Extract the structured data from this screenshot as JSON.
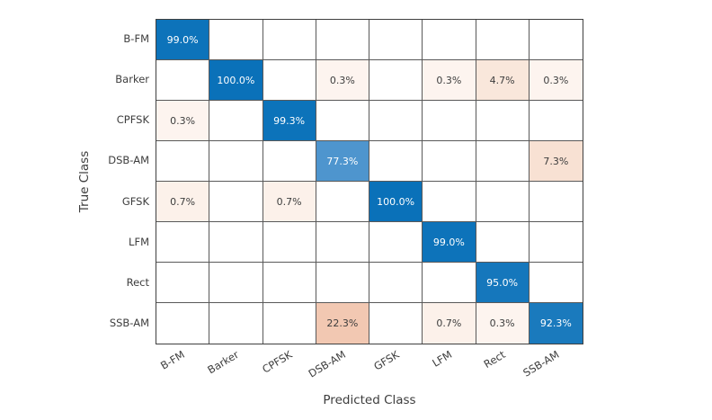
{
  "chart_data": {
    "type": "heatmap",
    "subtype": "confusion-matrix",
    "title": "",
    "xlabel": "Predicted Class",
    "ylabel": "True Class",
    "classes": [
      "B-FM",
      "Barker",
      "CPFSK",
      "DSB-AM",
      "GFSK",
      "LFM",
      "Rect",
      "SSB-AM"
    ],
    "values_unit": "percent",
    "value_suffix": "%",
    "matrix": [
      [
        99.0,
        null,
        null,
        null,
        null,
        null,
        null,
        null
      ],
      [
        null,
        100.0,
        null,
        0.3,
        null,
        0.3,
        4.7,
        0.3
      ],
      [
        0.3,
        null,
        99.3,
        null,
        null,
        null,
        null,
        null
      ],
      [
        null,
        null,
        null,
        77.3,
        null,
        null,
        null,
        7.3
      ],
      [
        0.7,
        null,
        0.7,
        null,
        100.0,
        null,
        null,
        null
      ],
      [
        null,
        null,
        null,
        null,
        null,
        99.0,
        null,
        null
      ],
      [
        null,
        null,
        null,
        null,
        null,
        null,
        95.0,
        null
      ],
      [
        null,
        null,
        null,
        22.3,
        null,
        0.7,
        0.3,
        92.3
      ]
    ],
    "cell_bg": [
      [
        "#0d73ba",
        null,
        null,
        null,
        null,
        null,
        null,
        null
      ],
      [
        null,
        "#0a71b9",
        null,
        "#fdf4ef",
        null,
        "#fdf4ef",
        "#f9e7db",
        "#fdf4ef"
      ],
      [
        "#fdf4ef",
        null,
        "#0c73ba",
        null,
        null,
        null,
        null,
        null
      ],
      [
        null,
        null,
        null,
        "#4e95ce",
        null,
        null,
        null,
        "#f8e1d3"
      ],
      [
        "#fcf1ea",
        null,
        "#fcf1ea",
        null,
        "#0a71b9",
        null,
        null,
        null
      ],
      [
        null,
        null,
        null,
        null,
        null,
        "#0d73ba",
        null,
        null
      ],
      [
        null,
        null,
        null,
        null,
        null,
        null,
        "#1577bc",
        null
      ],
      [
        null,
        null,
        null,
        "#f2c8b2",
        null,
        "#fcf1ea",
        "#fdf4ef",
        "#1a7abd"
      ]
    ],
    "layout": {
      "grid_on": true,
      "legend": "none",
      "colorbar": "none"
    }
  },
  "style": {
    "background": "#ffffff",
    "diagonal_base_color": "#0072bd",
    "offdiagonal_base_color": "#d95319",
    "diagonal_text_color": "#ffffff",
    "value_text_color": "#3d3d3d",
    "tick_label_color": "#3d3d3d",
    "inner_grid_line_color": "#595959",
    "outer_border_color": "#3f3f3f"
  }
}
